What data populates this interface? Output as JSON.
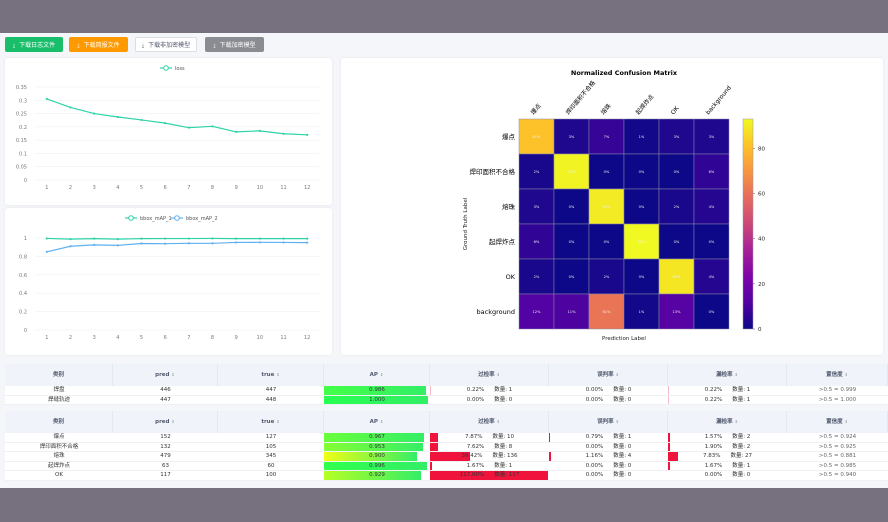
{
  "toolbar": {
    "buttons": [
      {
        "label": "下载日志文件",
        "icon": "download-icon",
        "bg": "#19be6b",
        "color": "#fff"
      },
      {
        "label": "下载简报文件",
        "icon": "download-icon",
        "bg": "#ff9900",
        "color": "#fff"
      },
      {
        "label": "下载非加密模型",
        "icon": "download-icon",
        "bg": "#ffffff",
        "color": "#515a6e"
      },
      {
        "label": "下载加密模型",
        "icon": "download-icon",
        "bg": "#8a8c91",
        "color": "#fff"
      }
    ]
  },
  "chart_data": [
    {
      "type": "line",
      "categories": [
        1,
        2,
        3,
        4,
        5,
        6,
        7,
        8,
        9,
        10,
        11,
        12
      ],
      "ylim": [
        0,
        0.35
      ],
      "yticks": [
        "0",
        "0.05",
        "0.1",
        "0.15",
        "0.2",
        "0.25",
        "0.3",
        "0.35"
      ],
      "series": [
        {
          "name": "loss",
          "color": "#2fd3a9",
          "values": [
            0.305,
            0.273,
            0.25,
            0.237,
            0.226,
            0.214,
            0.197,
            0.202,
            0.181,
            0.185,
            0.174,
            0.17
          ]
        }
      ],
      "legend": "top"
    },
    {
      "type": "line",
      "categories": [
        1,
        2,
        3,
        4,
        5,
        6,
        7,
        8,
        9,
        10,
        11,
        12
      ],
      "ylim": [
        0,
        1
      ],
      "yticks": [
        "0",
        "0.2",
        "0.4",
        "0.6",
        "0.8",
        "1"
      ],
      "series": [
        {
          "name": "bbox_mAP_1",
          "color": "#2fd3a9",
          "values": [
            0.995,
            0.988,
            0.993,
            0.988,
            0.993,
            0.994,
            0.994,
            0.995,
            0.993,
            0.993,
            0.993,
            0.993
          ]
        },
        {
          "name": "bbox_mAP_2",
          "color": "#5fb0ef",
          "values": [
            0.85,
            0.91,
            0.925,
            0.92,
            0.94,
            0.938,
            0.942,
            0.942,
            0.952,
            0.953,
            0.952,
            0.95
          ]
        }
      ],
      "legend": "top"
    },
    {
      "type": "heatmap",
      "title": "Normalized Confusion Matrix",
      "xlabel": "Prediction Label",
      "ylabel": "Ground Truth Label",
      "labels": [
        "爆点",
        "焊印面积不合格",
        "熔珠",
        "起焊炸点",
        "OK",
        "background"
      ],
      "values": [
        [
          81,
          3,
          7,
          1,
          3,
          3
        ],
        [
          2,
          92,
          0,
          0,
          0,
          6
        ],
        [
          3,
          0,
          90,
          0,
          2,
          4
        ],
        [
          6,
          0,
          0,
          93,
          0,
          0
        ],
        [
          2,
          0,
          2,
          0,
          89,
          4
        ],
        [
          12,
          11,
          61,
          1,
          13,
          0
        ]
      ],
      "colorbar": {
        "range": [
          0,
          93
        ],
        "ticks": [
          "0",
          "20",
          "40",
          "60",
          "80"
        ],
        "colormap": "plasma"
      }
    }
  ],
  "tables": [
    {
      "headers": [
        "类别",
        "pred",
        "true",
        "AP",
        "过检率",
        "误判率",
        "漏检率",
        "置信度"
      ],
      "rows": [
        {
          "name": "焊盘",
          "pred": "446",
          "true": "447",
          "ap": "0.986",
          "ap_v": 0.986,
          "over": "0.22%",
          "over_n": "数量: 1",
          "over_v": 0.22,
          "mis": "0.00%",
          "mis_n": "数量: 0",
          "mis_v": 0,
          "miss": "0.22%",
          "miss_n": "数量: 1",
          "miss_v": 0.22,
          "conf": ">0.5 = 0.999"
        },
        {
          "name": "焊缝轨迹",
          "pred": "447",
          "true": "448",
          "ap": "1.000",
          "ap_v": 1.0,
          "over": "0.00%",
          "over_n": "数量: 0",
          "over_v": 0,
          "mis": "0.00%",
          "mis_n": "数量: 0",
          "mis_v": 0,
          "miss": "0.22%",
          "miss_n": "数量: 1",
          "miss_v": 0.22,
          "conf": ">0.5 = 1.000"
        }
      ]
    },
    {
      "headers": [
        "类别",
        "pred",
        "true",
        "AP",
        "过检率",
        "误判率",
        "漏检率",
        "置信度"
      ],
      "rows": [
        {
          "name": "爆点",
          "pred": "152",
          "true": "127",
          "ap": "0.967",
          "ap_v": 0.967,
          "over": "7.87%",
          "over_n": "数量: 10",
          "over_v": 7.87,
          "mis": "0.79%",
          "mis_n": "数量: 1",
          "mis_v": 0.79,
          "miss": "1.57%",
          "miss_n": "数量: 2",
          "miss_v": 1.57,
          "conf": ">0.5 = 0.924"
        },
        {
          "name": "焊印面积不合格",
          "pred": "132",
          "true": "105",
          "ap": "0.953",
          "ap_v": 0.953,
          "over": "7.62%",
          "over_n": "数量: 8",
          "over_v": 7.62,
          "mis": "0.00%",
          "mis_n": "数量: 0",
          "mis_v": 0,
          "miss": "1.90%",
          "miss_n": "数量: 2",
          "miss_v": 1.9,
          "conf": ">0.5 = 0.925"
        },
        {
          "name": "熔珠",
          "pred": "479",
          "true": "345",
          "ap": "0.900",
          "ap_v": 0.9,
          "over": "39.42%",
          "over_n": "数量: 136",
          "over_v": 39.42,
          "mis": "1.16%",
          "mis_n": "数量: 4",
          "mis_v": 1.16,
          "miss": "7.83%",
          "miss_n": "数量: 27",
          "miss_v": 7.83,
          "conf": ">0.5 = 0.881"
        },
        {
          "name": "起焊炸点",
          "pred": "63",
          "true": "60",
          "ap": "0.996",
          "ap_v": 0.996,
          "over": "1.67%",
          "over_n": "数量: 1",
          "over_v": 1.67,
          "mis": "0.00%",
          "mis_n": "数量: 0",
          "mis_v": 0,
          "miss": "1.67%",
          "miss_n": "数量: 1",
          "miss_v": 1.67,
          "conf": ">0.5 = 0.985"
        },
        {
          "name": "OK",
          "pred": "117",
          "true": "100",
          "ap": "0.929",
          "ap_v": 0.929,
          "over": "117.00%",
          "over_n": "数量: 117",
          "over_v": 117,
          "mis": "0.00%",
          "mis_n": "数量: 0",
          "mis_v": 0,
          "miss": "0.00%",
          "miss_n": "数量: 0",
          "miss_v": 0,
          "conf": ">0.5 = 0.940"
        }
      ]
    }
  ]
}
